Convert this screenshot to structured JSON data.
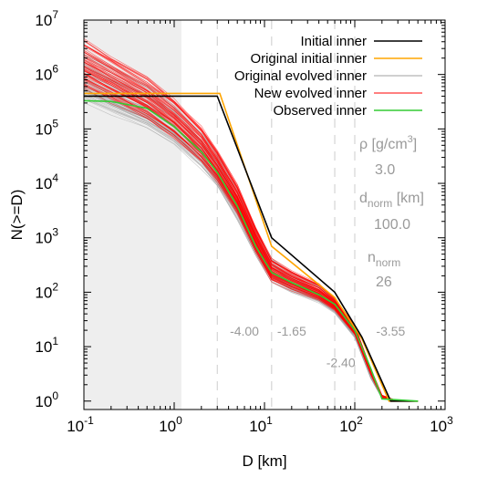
{
  "chart_data": {
    "type": "line",
    "xlabel": "D [km]",
    "ylabel": "N(>=D)",
    "xscale": "log",
    "yscale": "log",
    "xlim": [
      0.1,
      1000
    ],
    "ylim": [
      0.7,
      10000000
    ],
    "x_tick_labels": [
      {
        "value": 0.1,
        "base": "10",
        "exp": "-1"
      },
      {
        "value": 1,
        "base": "10",
        "exp": "0"
      },
      {
        "value": 10,
        "base": "10",
        "exp": "1"
      },
      {
        "value": 100,
        "base": "10",
        "exp": "2"
      },
      {
        "value": 1000,
        "base": "10",
        "exp": "3"
      }
    ],
    "y_tick_labels": [
      {
        "value": 1,
        "base": "10",
        "exp": "0"
      },
      {
        "value": 10,
        "base": "10",
        "exp": "1"
      },
      {
        "value": 100,
        "base": "10",
        "exp": "2"
      },
      {
        "value": 1000,
        "base": "10",
        "exp": "3"
      },
      {
        "value": 10000,
        "base": "10",
        "exp": "4"
      },
      {
        "value": 100000,
        "base": "10",
        "exp": "5"
      },
      {
        "value": 1000000,
        "base": "10",
        "exp": "6"
      },
      {
        "value": 10000000,
        "base": "10",
        "exp": "7"
      }
    ],
    "shaded_region": {
      "x": [
        0.1,
        1.2
      ],
      "color": "#eeeeee"
    },
    "vertical_dashed_lines": [
      3.0,
      12,
      60,
      100
    ],
    "legend_position": "top-right",
    "series": [
      {
        "name": "Initial inner",
        "color": "#000000",
        "points": [
          [
            0.1,
            400000
          ],
          [
            3.0,
            400000
          ],
          [
            12,
            1000
          ],
          [
            60,
            100
          ],
          [
            120,
            15
          ],
          [
            250,
            1
          ],
          [
            500,
            1
          ]
        ]
      },
      {
        "name": "Original initial inner",
        "color": "#ffa500",
        "points": [
          [
            0.1,
            450000
          ],
          [
            3.2,
            450000
          ],
          [
            12,
            700
          ],
          [
            60,
            80
          ],
          [
            120,
            14
          ],
          [
            240,
            1
          ],
          [
            500,
            1
          ]
        ]
      },
      {
        "name": "Original evolved inner",
        "color": "#a0a0a0",
        "ensemble": true,
        "points": [
          [
            0.1,
            900000
          ],
          [
            0.2,
            500000
          ],
          [
            0.5,
            250000
          ],
          [
            1,
            120000
          ],
          [
            2,
            40000
          ],
          [
            3,
            17000
          ],
          [
            5,
            4000
          ],
          [
            8,
            800
          ],
          [
            12,
            250
          ],
          [
            20,
            150
          ],
          [
            40,
            90
          ],
          [
            60,
            55
          ],
          [
            100,
            18
          ],
          [
            150,
            3
          ],
          [
            200,
            1.2
          ],
          [
            300,
            1
          ]
        ]
      },
      {
        "name": "New evolved inner",
        "color": "#ff0000",
        "ensemble": true,
        "points": [
          [
            0.1,
            1500000
          ],
          [
            0.2,
            800000
          ],
          [
            0.5,
            350000
          ],
          [
            1,
            150000
          ],
          [
            2,
            50000
          ],
          [
            3,
            20000
          ],
          [
            5,
            5000
          ],
          [
            8,
            900
          ],
          [
            12,
            250
          ],
          [
            20,
            160
          ],
          [
            40,
            100
          ],
          [
            60,
            60
          ],
          [
            100,
            20
          ],
          [
            150,
            3.5
          ],
          [
            200,
            1.2
          ],
          [
            300,
            1
          ]
        ]
      },
      {
        "name": "Observed inner",
        "color": "#33cc33",
        "points": [
          [
            0.1,
            330000
          ],
          [
            0.2,
            320000
          ],
          [
            0.5,
            240000
          ],
          [
            1,
            110000
          ],
          [
            2,
            38000
          ],
          [
            3,
            16000
          ],
          [
            5,
            3800
          ],
          [
            8,
            700
          ],
          [
            12,
            230
          ],
          [
            20,
            150
          ],
          [
            40,
            90
          ],
          [
            60,
            60
          ],
          [
            100,
            20
          ],
          [
            150,
            4
          ],
          [
            200,
            1.1
          ],
          [
            500,
            1
          ]
        ]
      }
    ],
    "slope_labels": [
      {
        "text": "-4.00",
        "x": 6.0,
        "y": 16
      },
      {
        "text": "-1.65",
        "x": 20,
        "y": 16
      },
      {
        "text": "-2.40",
        "x": 70,
        "y": 4.2
      },
      {
        "text": "-3.55",
        "x": 250,
        "y": 16
      }
    ],
    "params": {
      "rho_label": "ρ [g/cm",
      "rho_unit_sup": "3",
      "rho_label_end": "]",
      "rho_value": "3.0",
      "dnorm_label_main": "d",
      "dnorm_label_sub": "norm",
      "dnorm_label_unit": " [km]",
      "dnorm_value": "100.0",
      "nnorm_label_main": "n",
      "nnorm_label_sub": "norm",
      "nnorm_value": "26"
    }
  }
}
